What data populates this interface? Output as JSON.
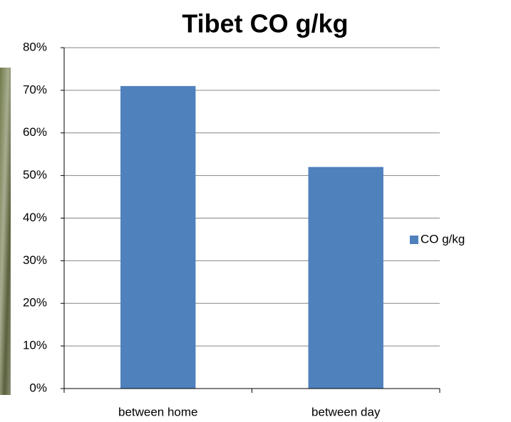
{
  "chart_data": {
    "type": "bar",
    "title": "Tibet CO g/kg",
    "categories": [
      "between home",
      "between day"
    ],
    "series": [
      {
        "name": "CO g/kg",
        "color": "#4f81bd",
        "values": [
          71,
          52
        ]
      }
    ],
    "ylim": [
      0,
      80
    ],
    "yticks": [
      {
        "value": 0,
        "label": "0%"
      },
      {
        "value": 10,
        "label": "10%"
      },
      {
        "value": 20,
        "label": "20%"
      },
      {
        "value": 30,
        "label": "30%"
      },
      {
        "value": 40,
        "label": "40%"
      },
      {
        "value": 50,
        "label": "50%"
      },
      {
        "value": 60,
        "label": "60%"
      },
      {
        "value": 70,
        "label": "70%"
      },
      {
        "value": 80,
        "label": "80%"
      }
    ],
    "grid": true,
    "legend": "right"
  }
}
